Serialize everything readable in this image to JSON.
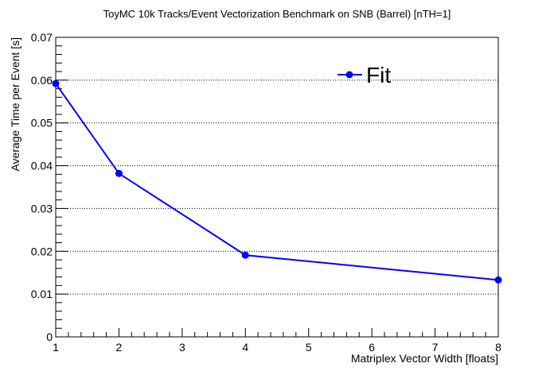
{
  "chart_data": {
    "type": "line",
    "title": "ToyMC 10k Tracks/Event Vectorization Benchmark on SNB (Barrel) [nTH=1]",
    "xlabel": "Matriplex Vector Width [floats]",
    "ylabel": "Average Time per Event [s]",
    "xlim": [
      1,
      8
    ],
    "ylim": [
      0,
      0.07
    ],
    "x_ticks": [
      1,
      2,
      3,
      4,
      5,
      6,
      7,
      8
    ],
    "y_ticks": [
      0,
      0.01,
      0.02,
      0.03,
      0.04,
      0.05,
      0.06,
      0.07
    ],
    "x_tick_labels": [
      "1",
      "2",
      "3",
      "4",
      "5",
      "6",
      "7",
      "8"
    ],
    "y_tick_labels": [
      "0",
      "0.01",
      "0.02",
      "0.03",
      "0.04",
      "0.05",
      "0.06",
      "0.07"
    ],
    "grid": "horizontal-dotted",
    "legend_position": "top-right",
    "series": [
      {
        "name": "Fit",
        "color": "#0000ff",
        "x": [
          1,
          2,
          4,
          8
        ],
        "y": [
          0.0592,
          0.0382,
          0.0191,
          0.0133
        ]
      }
    ]
  }
}
